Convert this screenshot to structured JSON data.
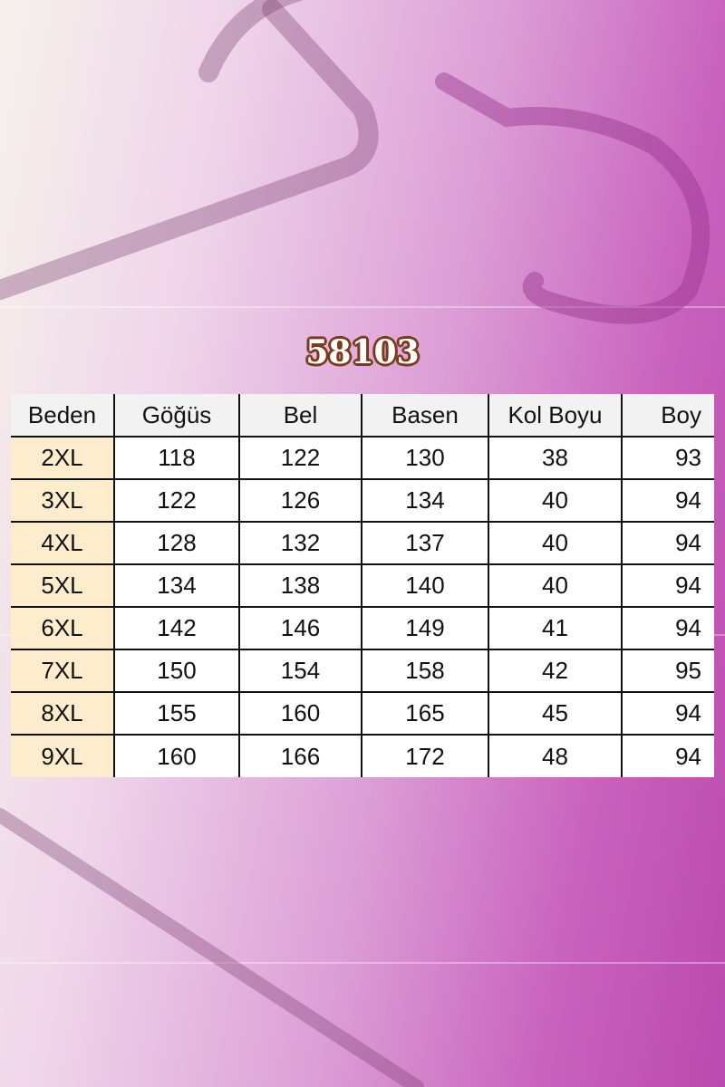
{
  "title": "58103",
  "table": {
    "headers": [
      "Beden",
      "Göğüs",
      "Bel",
      "Basen",
      "Kol Boyu",
      "Boy"
    ],
    "rows": [
      [
        "2XL",
        "118",
        "122",
        "130",
        "38",
        "93"
      ],
      [
        "3XL",
        "122",
        "126",
        "134",
        "40",
        "94"
      ],
      [
        "4XL",
        "128",
        "132",
        "137",
        "40",
        "94"
      ],
      [
        "5XL",
        "134",
        "138",
        "140",
        "40",
        "94"
      ],
      [
        "6XL",
        "142",
        "146",
        "149",
        "41",
        "94"
      ],
      [
        "7XL",
        "150",
        "154",
        "158",
        "42",
        "95"
      ],
      [
        "8XL",
        "155",
        "160",
        "165",
        "45",
        "94"
      ],
      [
        "9XL",
        "160",
        "166",
        "172",
        "48",
        "94"
      ]
    ]
  },
  "colors": {
    "size_column": "#fdedcc",
    "title_outline": "#7a3b1c",
    "accent": "#bb4aae"
  }
}
